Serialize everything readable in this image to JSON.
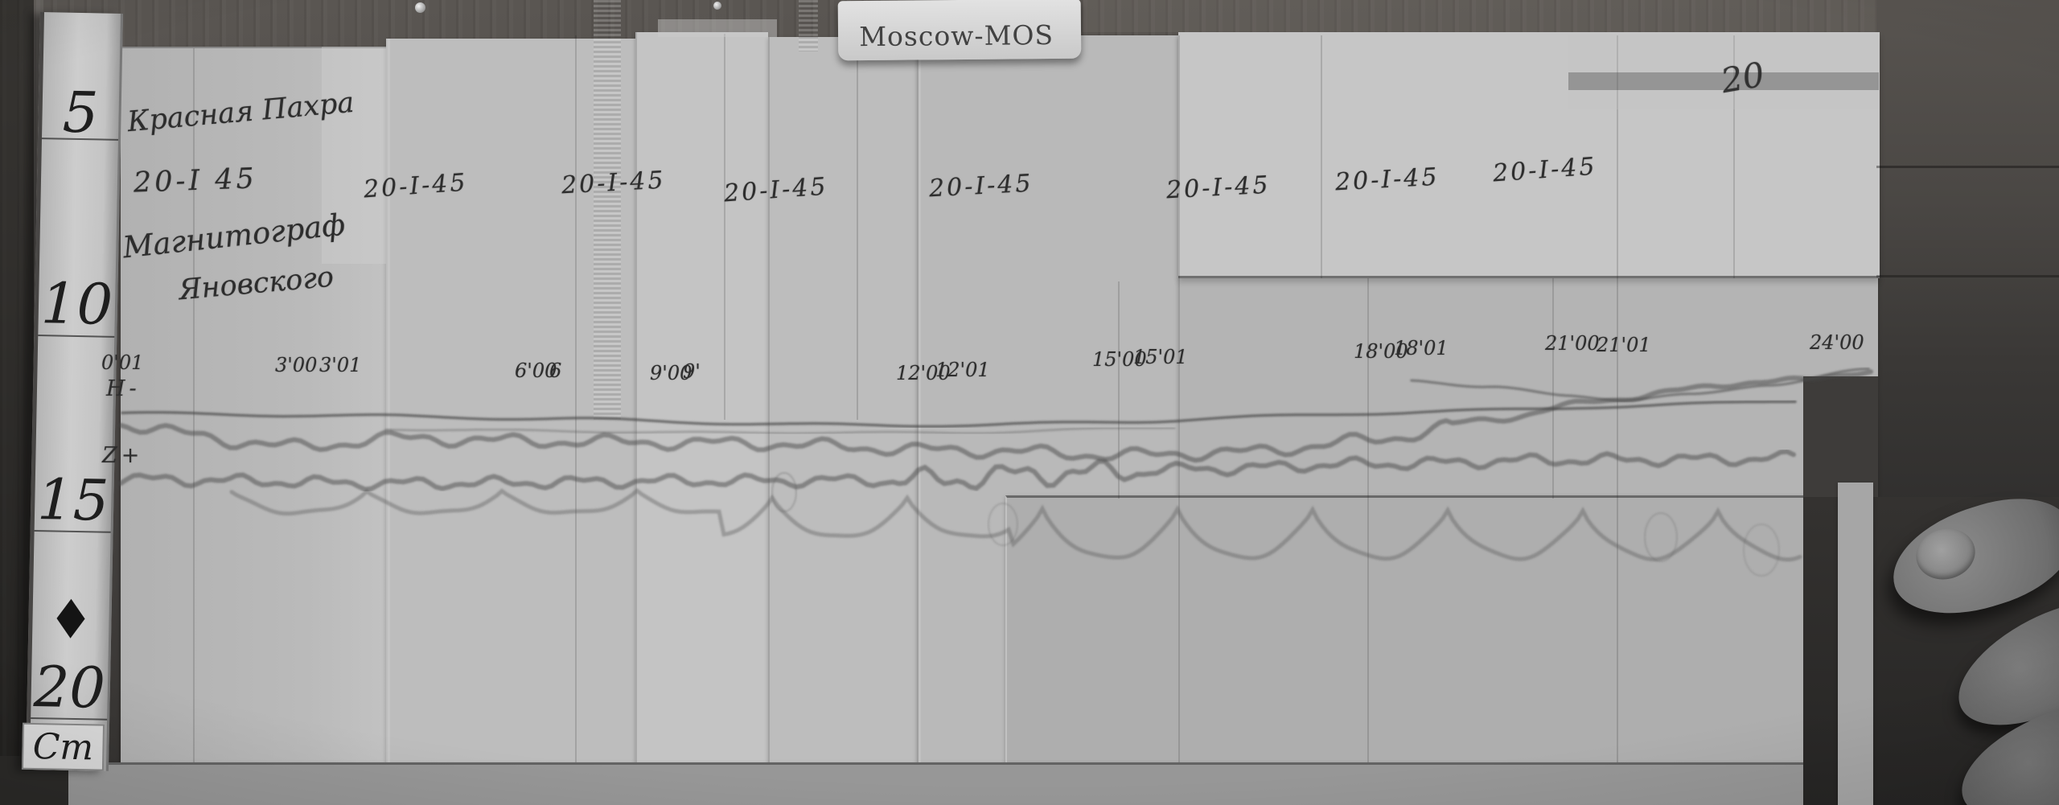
{
  "photo": {
    "plate_text": "Moscow-MOS",
    "page_number": "20"
  },
  "ruler": {
    "unit_label": "Cm",
    "marks": [
      "5",
      "10",
      "15",
      "20"
    ],
    "diamond_glyph": "◆"
  },
  "header": {
    "station_name": "Красная Пахра",
    "date": "20-I 45",
    "instrument_line1": "Магнитограф",
    "instrument_line2": "Яновского"
  },
  "date_labels": [
    "20-I-45",
    "20-I-45",
    "20-I-45",
    "20-I-45",
    "20-I-45",
    "20-I-45",
    "20-I-45"
  ],
  "time_labels": [
    "0'01",
    "3'00",
    "3'01",
    "6'00",
    "6",
    "9'00",
    "9'",
    "12'00",
    "12'01",
    "15'00",
    "15'01",
    "18'00",
    "18'01",
    "21'00",
    "21'01",
    "24'00"
  ],
  "trace_labels": {
    "h": "H-",
    "z": "Z+"
  },
  "colors": {
    "paper": "#bdbdbd",
    "wood": "#4c4947",
    "ink": "#2d2d2d"
  }
}
